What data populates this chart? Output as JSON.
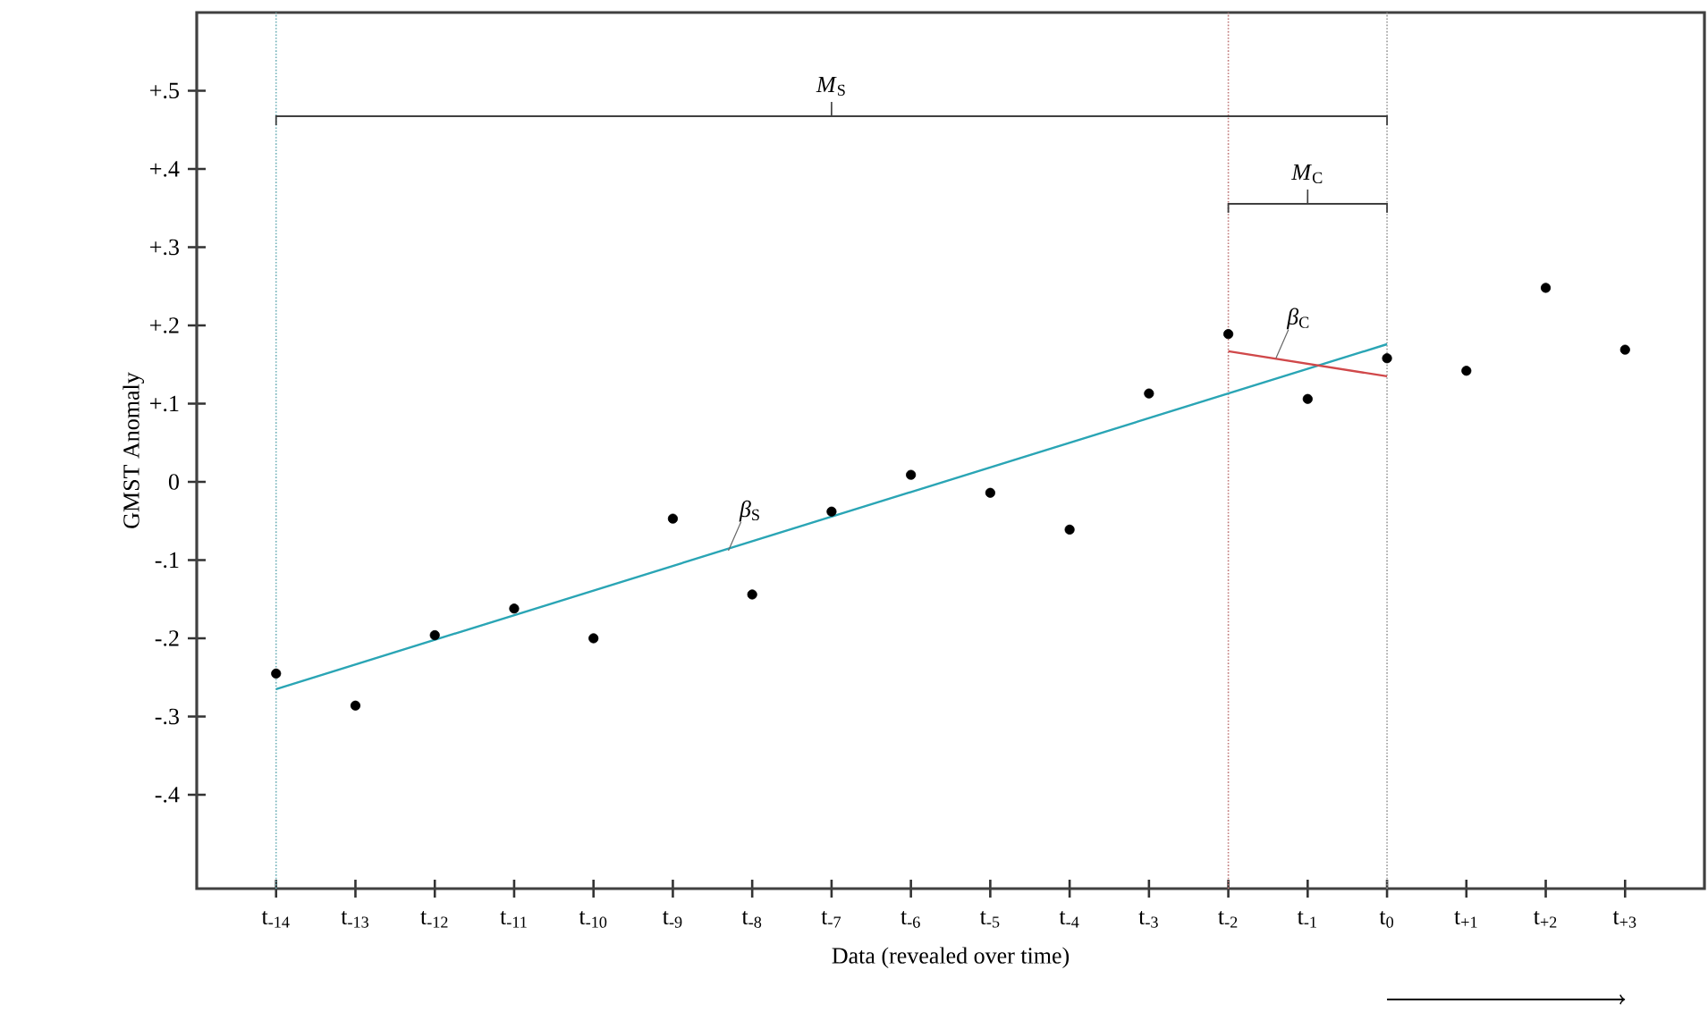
{
  "chart_data": {
    "type": "scatter",
    "xlabel": "Data (revealed over time)",
    "ylabel": "GMST Anomaly",
    "xlim": [
      -15,
      4
    ],
    "ylim": [
      -0.52,
      0.6
    ],
    "xticks": [
      {
        "value": -14,
        "label": "t$_{-14}$"
      },
      {
        "value": -13,
        "label": "t$_{-13}$"
      },
      {
        "value": -12,
        "label": "t$_{-12}$"
      },
      {
        "value": -11,
        "label": "t$_{-11}$"
      },
      {
        "value": -10,
        "label": "t$_{-10}$"
      },
      {
        "value": -9,
        "label": "t$_{-9}$"
      },
      {
        "value": -8,
        "label": "t$_{-8}$"
      },
      {
        "value": -7,
        "label": "t$_{-7}$"
      },
      {
        "value": -6,
        "label": "t$_{-6}$"
      },
      {
        "value": -5,
        "label": "t$_{-5}$"
      },
      {
        "value": -4,
        "label": "t$_{-4}$"
      },
      {
        "value": -3,
        "label": "t$_{-3}$"
      },
      {
        "value": -2,
        "label": "t$_{-2}$"
      },
      {
        "value": -1,
        "label": "t$_{-1}$"
      },
      {
        "value": 0,
        "label": "t$_{0}$"
      },
      {
        "value": 1,
        "label": "t$_{+1}$"
      },
      {
        "value": 2,
        "label": "t$_{+2}$"
      },
      {
        "value": 3,
        "label": "t$_{+3}$"
      }
    ],
    "yticks": [
      {
        "value": -0.4,
        "label": "-.4"
      },
      {
        "value": -0.3,
        "label": "-.3"
      },
      {
        "value": -0.2,
        "label": "-.2"
      },
      {
        "value": -0.1,
        "label": "-.1"
      },
      0,
      {
        "value": 0.1,
        "label": "+.1"
      },
      {
        "value": 0.2,
        "label": "+.2"
      },
      {
        "value": 0.3,
        "label": "+.3"
      },
      {
        "value": 0.4,
        "label": "+.4"
      },
      {
        "value": 0.5,
        "label": "+.5"
      }
    ],
    "grid": false,
    "series": [
      {
        "marker": "circle",
        "color": "#000000",
        "x": [
          -14,
          -13,
          -12,
          -11,
          -10,
          -9,
          -8,
          -7,
          -6,
          -5,
          -4,
          -3,
          -2,
          -1,
          0,
          1,
          2,
          3
        ],
        "values": [
          -0.245,
          -0.286,
          -0.196,
          -0.162,
          -0.2,
          -0.047,
          -0.144,
          -0.038,
          0.009,
          -0.014,
          -0.061,
          0.113,
          0.189,
          0.106,
          0.158,
          0.142,
          0.248,
          0.169
        ]
      },
      {
        "type": "line",
        "marker": "none",
        "color": "#2aa5b5",
        "x": [
          -14,
          0
        ],
        "values": [
          -0.265,
          0.176
        ]
      },
      {
        "type": "line",
        "marker": "none",
        "color": "#d0484a",
        "x": [
          -2,
          0
        ],
        "values": [
          0.167,
          0.135
        ]
      }
    ],
    "ref_lines": [
      {
        "axis": "x",
        "value": -14,
        "color": "#6fb0b8",
        "line_style": "dotted"
      },
      {
        "axis": "x",
        "value": -2,
        "color": "#c07878",
        "line_style": "dotted"
      },
      {
        "axis": "x",
        "value": 0,
        "color": "#999999",
        "line_style": "dotted"
      }
    ],
    "annotations": [
      "*M*$_{S}$",
      "*M*$_{C}$",
      {
        "text": "*β*$_{S}$",
        "x": -8.3,
        "y": -0.088
      },
      {
        "text": "*β*$_{C}$",
        "x": -1.4,
        "y": 0.158
      }
    ]
  }
}
